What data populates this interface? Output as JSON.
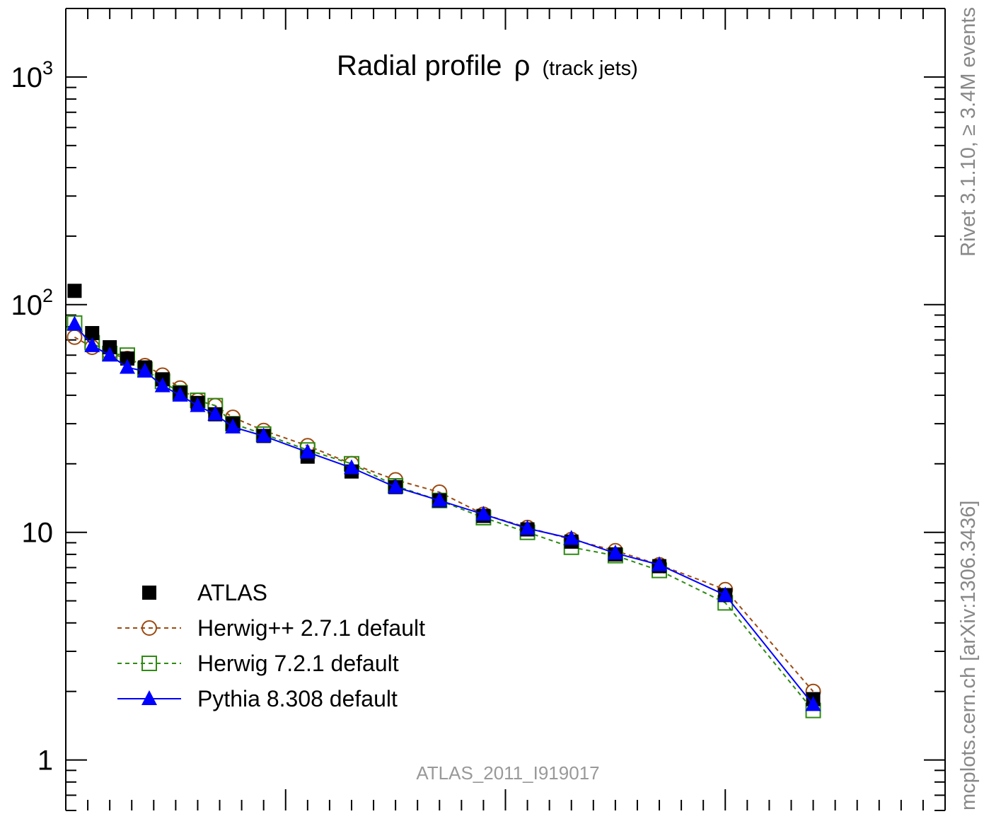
{
  "chart_data": {
    "type": "line",
    "title_main": "Radial profile",
    "title_symbol": "ρ",
    "title_sub": "(track jets)",
    "yscale": "log",
    "ylim": [
      0.6,
      2000
    ],
    "xlim": [
      0,
      1
    ],
    "ytick_labels": [
      {
        "value": 1000,
        "base": "10",
        "exp": "3"
      },
      {
        "value": 100,
        "base": "10",
        "exp": "2"
      },
      {
        "value": 10,
        "base": "10",
        "exp": ""
      },
      {
        "value": 1,
        "base": "1",
        "exp": ""
      }
    ],
    "legend_placement": "bottom-left",
    "watermark": "ATLAS_2011_I919017",
    "side_label_top": "Rivet 3.1.10, ≥ 3.4M events",
    "side_label_bottom": "mcplots.cern.ch [arXiv:1306.3436]",
    "x": [
      0.01,
      0.03,
      0.05,
      0.07,
      0.09,
      0.11,
      0.13,
      0.15,
      0.17,
      0.19,
      0.225,
      0.275,
      0.325,
      0.375,
      0.425,
      0.475,
      0.525,
      0.575,
      0.625,
      0.675,
      0.75,
      0.85
    ],
    "series": [
      {
        "name": "ATLAS",
        "style": "data",
        "color": "#000000",
        "values": [
          115,
          75,
          65,
          58,
          53,
          47,
          41,
          37,
          33,
          30,
          26.5,
          21.5,
          18.5,
          15.8,
          13.8,
          11.8,
          10.3,
          9.1,
          8.0,
          7.1,
          5.3,
          1.85
        ]
      },
      {
        "name": "Herwig++ 2.7.1 default",
        "style": "dashed-circle",
        "color": "#9c4a10",
        "values": [
          72,
          65,
          61,
          58,
          54,
          49,
          43,
          38,
          36,
          32,
          28,
          24,
          20,
          17,
          15,
          12,
          10.5,
          9.3,
          8.3,
          7.2,
          5.6,
          2.0
        ]
      },
      {
        "name": "Herwig 7.2.1 default",
        "style": "dashed-square",
        "color": "#2e8b12",
        "values": [
          83,
          68,
          61,
          60,
          52,
          46,
          41,
          38,
          36,
          30,
          27,
          23,
          20,
          16,
          13.8,
          11.6,
          10.0,
          8.6,
          7.9,
          6.8,
          4.9,
          1.65
        ]
      },
      {
        "name": "Pythia 8.308 default",
        "style": "solid-triangle",
        "color": "#0000ff",
        "values": [
          82,
          66,
          60,
          53,
          51,
          44,
          40,
          36,
          33,
          29,
          26.5,
          22.5,
          19.2,
          15.8,
          13.8,
          12.0,
          10.4,
          9.4,
          8.1,
          7.2,
          5.3,
          1.75
        ]
      }
    ]
  }
}
